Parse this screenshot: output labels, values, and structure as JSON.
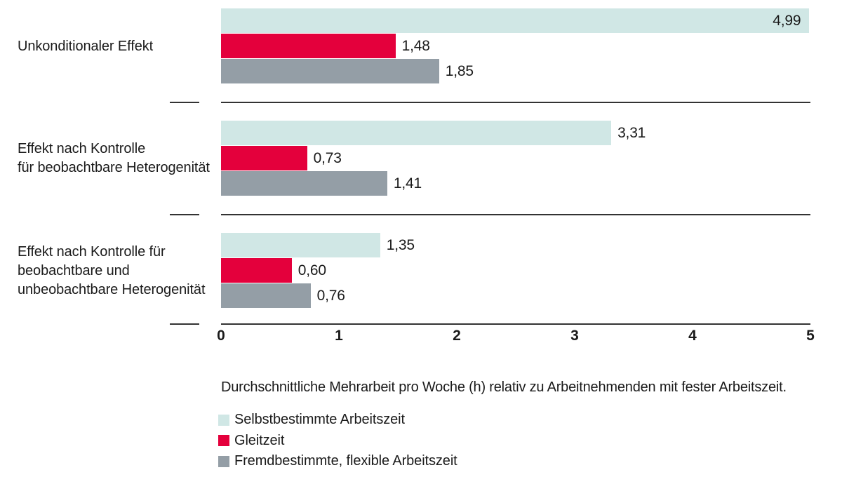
{
  "chart_data": {
    "type": "bar",
    "orientation": "horizontal",
    "categories": [
      "Unkonditionaler Effekt",
      "Effekt nach Kontrolle für beobachtbare Heterogenität",
      "Effekt nach Kontrolle für beobachtbare und unbeobachtbare Heterogenität"
    ],
    "categories_lines": [
      [
        "Unkonditionaler Effekt"
      ],
      [
        "Effekt nach Kontrolle",
        "für beobachtbare Heterogenität"
      ],
      [
        "Effekt nach Kontrolle für",
        "beobachtbare und",
        "unbeobachtbare Heterogenität"
      ]
    ],
    "series": [
      {
        "name": "Selbstbestimmte Arbeitszeit",
        "color": "#d0e7e5",
        "values": [
          4.99,
          3.31,
          1.35
        ],
        "value_labels": [
          "4,99",
          "3,31",
          "1,35"
        ]
      },
      {
        "name": "Gleitzeit",
        "color": "#e4003c",
        "values": [
          1.48,
          0.73,
          0.6
        ],
        "value_labels": [
          "1,48",
          "0,73",
          "0,60"
        ]
      },
      {
        "name": "Fremdbestimmte, flexible Arbeitszeit",
        "color": "#949ea6",
        "values": [
          1.85,
          1.41,
          0.76
        ],
        "value_labels": [
          "1,85",
          "1,41",
          "0,76"
        ]
      }
    ],
    "x_ticks": [
      "0",
      "1",
      "2",
      "3",
      "4",
      "5"
    ],
    "xlim": [
      0,
      5
    ],
    "grid": false,
    "legend_position": "bottom-left",
    "caption": "Durchschnittliche Mehrarbeit pro Woche (h) relativ zu Arbeitnehmenden mit fester Arbeitszeit."
  },
  "colors": {
    "background": "#ffffff",
    "axis_line": "#333333",
    "text": "#1a1a1a"
  }
}
